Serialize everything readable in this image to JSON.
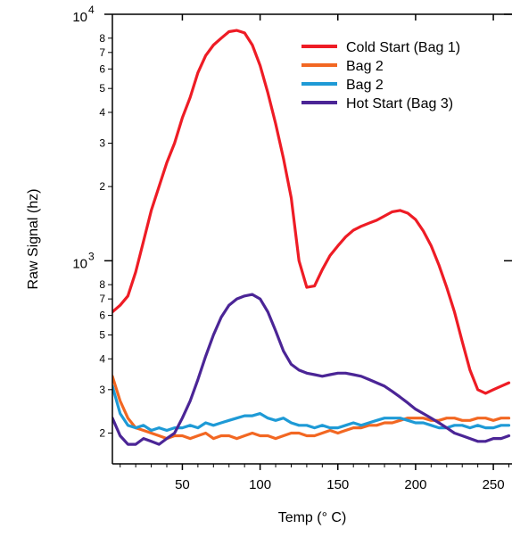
{
  "chart_data": {
    "type": "line",
    "xlabel": "Temp (° C)",
    "ylabel": "Raw Signal (hz)",
    "x_scale": "linear",
    "y_scale": "log",
    "xlim": [
      5,
      262
    ],
    "ylim": [
      150,
      10000
    ],
    "legend_position": "top-right",
    "grid": false,
    "x_ticks": [
      50,
      100,
      150,
      200,
      250
    ],
    "y_major_ticks": [
      {
        "value": 1000,
        "base": "10",
        "exp": "3"
      },
      {
        "value": 10000,
        "base": "10",
        "exp": "4"
      }
    ],
    "y_minor_ticks": [
      {
        "value": 200,
        "label": "2"
      },
      {
        "value": 300,
        "label": "3"
      },
      {
        "value": 400,
        "label": "4"
      },
      {
        "value": 500,
        "label": "5"
      },
      {
        "value": 600,
        "label": "6"
      },
      {
        "value": 700,
        "label": "7"
      },
      {
        "value": 800,
        "label": "8"
      },
      {
        "value": 2000,
        "label": "2"
      },
      {
        "value": 3000,
        "label": "3"
      },
      {
        "value": 4000,
        "label": "4"
      },
      {
        "value": 5000,
        "label": "5"
      },
      {
        "value": 6000,
        "label": "6"
      },
      {
        "value": 7000,
        "label": "7"
      },
      {
        "value": 8000,
        "label": "8"
      }
    ],
    "series": [
      {
        "name": "Cold Start (Bag 1)",
        "color": "#ee1c25",
        "x": [
          5,
          10,
          15,
          20,
          25,
          30,
          35,
          40,
          45,
          50,
          55,
          60,
          65,
          70,
          75,
          80,
          85,
          90,
          95,
          100,
          105,
          110,
          115,
          120,
          125,
          130,
          135,
          140,
          145,
          150,
          155,
          160,
          165,
          170,
          175,
          180,
          185,
          190,
          195,
          200,
          205,
          210,
          215,
          220,
          225,
          230,
          235,
          240,
          245,
          250,
          255,
          260
        ],
        "y": [
          620,
          660,
          720,
          900,
          1200,
          1600,
          2000,
          2500,
          3000,
          3800,
          4600,
          5800,
          6800,
          7500,
          8000,
          8500,
          8600,
          8400,
          7500,
          6200,
          4800,
          3600,
          2600,
          1800,
          1000,
          780,
          790,
          920,
          1050,
          1150,
          1250,
          1330,
          1380,
          1420,
          1460,
          1520,
          1580,
          1600,
          1560,
          1470,
          1320,
          1150,
          960,
          780,
          620,
          470,
          360,
          300,
          290,
          300,
          310,
          320
        ]
      },
      {
        "name": "Bag 2",
        "color": "#f26722",
        "x": [
          5,
          10,
          15,
          20,
          25,
          30,
          35,
          40,
          45,
          50,
          55,
          60,
          65,
          70,
          75,
          80,
          85,
          90,
          95,
          100,
          105,
          110,
          115,
          120,
          125,
          130,
          135,
          140,
          145,
          150,
          155,
          160,
          165,
          170,
          175,
          180,
          185,
          190,
          195,
          200,
          205,
          210,
          215,
          220,
          225,
          230,
          235,
          240,
          245,
          250,
          255,
          260
        ],
        "y": [
          340,
          270,
          230,
          210,
          205,
          200,
          195,
          190,
          195,
          195,
          190,
          195,
          200,
          190,
          195,
          195,
          190,
          195,
          200,
          195,
          195,
          190,
          195,
          200,
          200,
          195,
          195,
          200,
          205,
          200,
          205,
          210,
          210,
          215,
          215,
          220,
          220,
          225,
          230,
          230,
          230,
          225,
          225,
          230,
          230,
          225,
          225,
          230,
          230,
          225,
          230,
          230
        ]
      },
      {
        "name": "Bag 2",
        "color": "#1e9ad6",
        "x": [
          5,
          10,
          15,
          20,
          25,
          30,
          35,
          40,
          45,
          50,
          55,
          60,
          65,
          70,
          75,
          80,
          85,
          90,
          95,
          100,
          105,
          110,
          115,
          120,
          125,
          130,
          135,
          140,
          145,
          150,
          155,
          160,
          165,
          170,
          175,
          180,
          185,
          190,
          195,
          200,
          205,
          210,
          215,
          220,
          225,
          230,
          235,
          240,
          245,
          250,
          255,
          260
        ],
        "y": [
          310,
          240,
          215,
          210,
          215,
          205,
          210,
          205,
          210,
          210,
          215,
          210,
          220,
          215,
          220,
          225,
          230,
          235,
          235,
          240,
          230,
          225,
          230,
          220,
          215,
          215,
          210,
          215,
          210,
          210,
          215,
          220,
          215,
          220,
          225,
          230,
          230,
          230,
          225,
          220,
          220,
          215,
          210,
          210,
          215,
          215,
          210,
          215,
          210,
          210,
          215,
          215
        ]
      },
      {
        "name": "Hot Start (Bag 3)",
        "color": "#4b2596",
        "x": [
          5,
          10,
          15,
          20,
          25,
          30,
          35,
          40,
          45,
          50,
          55,
          60,
          65,
          70,
          75,
          80,
          85,
          90,
          95,
          100,
          105,
          110,
          115,
          120,
          125,
          130,
          135,
          140,
          145,
          150,
          155,
          160,
          165,
          170,
          175,
          180,
          185,
          190,
          195,
          200,
          205,
          210,
          215,
          220,
          225,
          230,
          235,
          240,
          245,
          250,
          255,
          260
        ],
        "y": [
          230,
          195,
          180,
          180,
          190,
          185,
          180,
          190,
          200,
          230,
          270,
          330,
          410,
          500,
          590,
          660,
          700,
          720,
          730,
          700,
          620,
          520,
          430,
          380,
          360,
          350,
          345,
          340,
          345,
          350,
          350,
          345,
          340,
          330,
          320,
          310,
          295,
          280,
          265,
          250,
          240,
          230,
          220,
          210,
          200,
          195,
          190,
          185,
          185,
          190,
          190,
          195
        ]
      }
    ]
  }
}
